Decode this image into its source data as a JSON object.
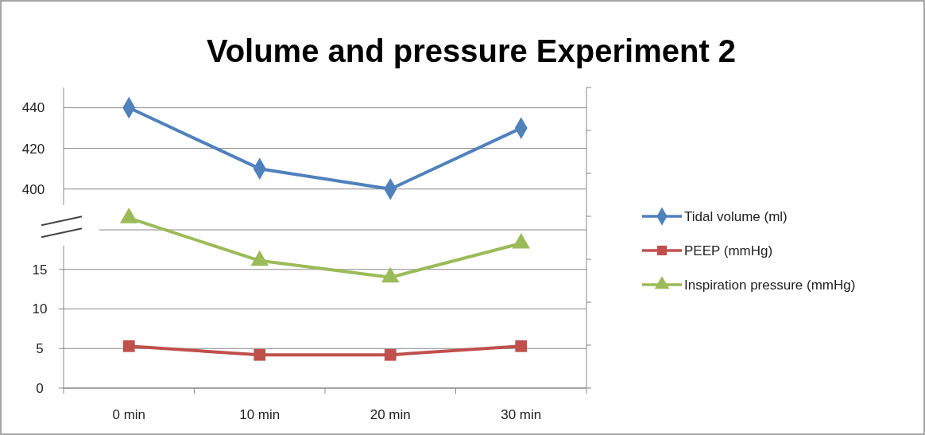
{
  "chart_data": {
    "type": "line",
    "title": "Volume and pressure Experiment 2",
    "categories": [
      "0 min",
      "10 min",
      "20 min",
      "30 min"
    ],
    "series": [
      {
        "name": "Tidal volume (ml)",
        "color": "#4f81bd",
        "values": [
          440,
          410,
          400,
          430
        ],
        "axis": "y2",
        "marker": "diamond"
      },
      {
        "name": "PEEP (mmHg)",
        "color": "#c0504d",
        "values": [
          5.3,
          4.2,
          4.2,
          5.3
        ],
        "marker": "square"
      },
      {
        "name": "Inspiration pressure (mmHg)",
        "color": "#9bbb59",
        "values": [
          21.5,
          16.1,
          14,
          18.3
        ],
        "marker": "triangle"
      }
    ],
    "ylim": [
      0,
      38
    ],
    "yticks": [
      0,
      5,
      10,
      15,
      {
        "value": 20,
        "label": null
      }
    ],
    "y2lim": [
      302,
      450
    ],
    "y2ticks": [
      400,
      420,
      440
    ],
    "grid": "y",
    "legend": "right",
    "line_style": "solid"
  }
}
